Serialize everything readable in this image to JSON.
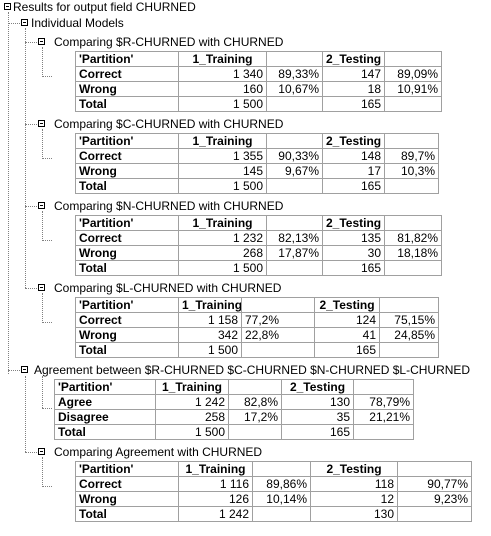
{
  "root": {
    "label": "Results for output field CHURNED"
  },
  "individual": {
    "label": "Individual Models"
  },
  "models": [
    {
      "heading": "Comparing $R-CHURNED with CHURNED",
      "header": [
        "'Partition'",
        "1_Training",
        "",
        "2_Testing",
        ""
      ],
      "rows": [
        [
          "Correct",
          "1 340",
          "89,33%",
          "147",
          "89,09%"
        ],
        [
          "Wrong",
          "160",
          "10,67%",
          "18",
          "10,91%"
        ],
        [
          "Total",
          "1 500",
          "",
          "165",
          ""
        ]
      ]
    },
    {
      "heading": "Comparing $C-CHURNED with CHURNED",
      "header": [
        "'Partition'",
        "1_Training",
        "",
        "2_Testing",
        ""
      ],
      "rows": [
        [
          "Correct",
          "1 355",
          "90,33%",
          "148",
          "89,7%"
        ],
        [
          "Wrong",
          "145",
          "9,67%",
          "17",
          "10,3%"
        ],
        [
          "Total",
          "1 500",
          "",
          "165",
          ""
        ]
      ]
    },
    {
      "heading": "Comparing $N-CHURNED with CHURNED",
      "header": [
        "'Partition'",
        "1_Training",
        "",
        "2_Testing",
        ""
      ],
      "rows": [
        [
          "Correct",
          "1 232",
          "82,13%",
          "135",
          "81,82%"
        ],
        [
          "Wrong",
          "268",
          "17,87%",
          "30",
          "18,18%"
        ],
        [
          "Total",
          "1 500",
          "",
          "165",
          ""
        ]
      ]
    },
    {
      "heading": "Comparing $L-CHURNED with CHURNED",
      "header": [
        "'Partition'",
        "1_Training",
        "",
        "2_Testing",
        ""
      ],
      "rows": [
        [
          "Correct",
          "1 158",
          "77,2%",
          "124",
          "75,15%"
        ],
        [
          "Wrong",
          "342",
          "22,8%",
          "41",
          "24,85%"
        ],
        [
          "Total",
          "1 500",
          "",
          "165",
          ""
        ]
      ]
    }
  ],
  "agreement": {
    "heading": "Agreement between  $R-CHURNED $C-CHURNED $N-CHURNED $L-CHURNED",
    "header": [
      "'Partition'",
      "1_Training",
      "",
      "2_Testing",
      ""
    ],
    "rows": [
      [
        "Agree",
        "1 242",
        "82,8%",
        "130",
        "78,79%"
      ],
      [
        "Disagree",
        "258",
        "17,2%",
        "35",
        "21,21%"
      ],
      [
        "Total",
        "1 500",
        "",
        "165",
        ""
      ]
    ]
  },
  "comparing_agreement": {
    "heading": "Comparing Agreement with CHURNED",
    "header": [
      "'Partition'",
      "1_Training",
      "",
      "2_Testing",
      ""
    ],
    "rows": [
      [
        "Correct",
        "1 116",
        "89,86%",
        "118",
        "90,77%"
      ],
      [
        "Wrong",
        "126",
        "10,14%",
        "12",
        "9,23%"
      ],
      [
        "Total",
        "1 242",
        "",
        "130",
        ""
      ]
    ]
  }
}
